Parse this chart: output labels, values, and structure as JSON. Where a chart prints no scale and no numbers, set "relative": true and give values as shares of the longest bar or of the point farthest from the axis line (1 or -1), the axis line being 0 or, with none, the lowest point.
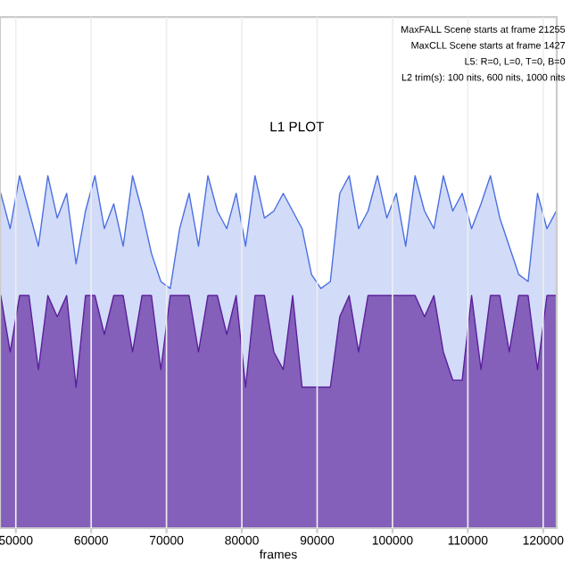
{
  "chart_data": {
    "type": "area",
    "title": "L1 PLOT",
    "xlabel": "frames",
    "annotations": [
      "MaxFALL Scene starts at frame 21255",
      "MaxCLL Scene starts at frame 1427",
      "L5: R=0, L=0, T=0, B=0",
      "L2 trim(s): 100 nits, 600 nits, 1000 nits"
    ],
    "relative": true,
    "grid": "x",
    "legend": false,
    "xlim": [
      47900,
      121800
    ],
    "xticks": [
      50000,
      60000,
      70000,
      80000,
      90000,
      100000,
      110000,
      120000
    ],
    "x": [
      48000,
      49250,
      50500,
      51750,
      53000,
      54250,
      55500,
      56750,
      58000,
      59250,
      60500,
      61750,
      63000,
      64250,
      65500,
      66750,
      68000,
      69250,
      70500,
      71750,
      73000,
      74250,
      75500,
      76750,
      78000,
      79250,
      80500,
      81750,
      83000,
      84250,
      85500,
      86750,
      88000,
      89250,
      90500,
      91750,
      93000,
      94250,
      95500,
      96750,
      98000,
      99250,
      100500,
      101750,
      103000,
      104250,
      105500,
      106750,
      108000,
      109250,
      110500,
      111750,
      113000,
      114250,
      115500,
      116750,
      118000,
      119250,
      120500,
      121750
    ],
    "series": [
      {
        "color": "#4a6fe0",
        "values": [
          0.95,
          0.85,
          1,
          0.9,
          0.8,
          1,
          0.88,
          0.95,
          0.75,
          0.9,
          1,
          0.85,
          0.92,
          0.8,
          1,
          0.9,
          0.78,
          0.7,
          0.68,
          0.85,
          0.95,
          0.8,
          1,
          0.9,
          0.85,
          0.95,
          0.8,
          1,
          0.88,
          0.9,
          0.95,
          0.9,
          0.85,
          0.72,
          0.68,
          0.7,
          0.95,
          1,
          0.85,
          0.9,
          1,
          0.88,
          0.95,
          0.8,
          1,
          0.9,
          0.85,
          1,
          0.9,
          0.95,
          0.85,
          0.92,
          1,
          0.88,
          0.8,
          0.72,
          0.7,
          0.95,
          0.85,
          0.9
        ]
      },
      {
        "color": "#5a1f9a",
        "values": [
          0.66,
          0.5,
          0.66,
          0.66,
          0.45,
          0.66,
          0.6,
          0.66,
          0.4,
          0.66,
          0.66,
          0.55,
          0.66,
          0.66,
          0.5,
          0.66,
          0.66,
          0.45,
          0.66,
          0.66,
          0.66,
          0.5,
          0.66,
          0.66,
          0.55,
          0.66,
          0.4,
          0.66,
          0.66,
          0.5,
          0.45,
          0.66,
          0.4,
          0.4,
          0.4,
          0.4,
          0.6,
          0.66,
          0.5,
          0.66,
          0.66,
          0.66,
          0.66,
          0.66,
          0.66,
          0.6,
          0.66,
          0.5,
          0.42,
          0.42,
          0.66,
          0.45,
          0.66,
          0.66,
          0.5,
          0.66,
          0.66,
          0.45,
          0.66,
          0.66
        ]
      }
    ]
  }
}
